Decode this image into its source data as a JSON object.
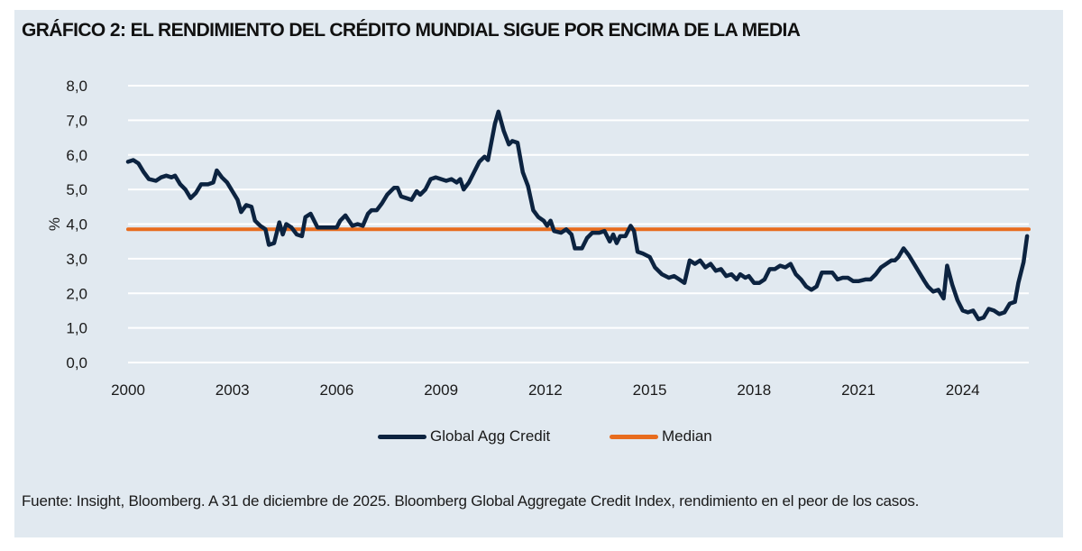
{
  "chart_data": {
    "type": "line",
    "title": "GRÁFICO 2: EL RENDIMIENTO DEL CRÉDITO MUNDIAL SIGUE POR ENCIMA DE LA MEDIA",
    "xlabel": "",
    "ylabel": "%",
    "xlim": [
      2000,
      2025.9
    ],
    "ylim": [
      0,
      8
    ],
    "x_ticks": [
      2000,
      2003,
      2006,
      2009,
      2012,
      2015,
      2018,
      2021,
      2024
    ],
    "x_tick_labels": [
      "2000",
      "2003",
      "2006",
      "2009",
      "2012",
      "2015",
      "2018",
      "2021",
      "2024"
    ],
    "y_ticks": [
      0,
      1,
      2,
      3,
      4,
      5,
      6,
      7,
      8
    ],
    "y_tick_labels": [
      "0,0",
      "1,0",
      "2,0",
      "3,0",
      "4,0",
      "5,0",
      "6,0",
      "7,0",
      "8,0"
    ],
    "grid": true,
    "legend_position": "bottom-center",
    "series": [
      {
        "name": "Global Agg Credit",
        "color": "#0c2340",
        "points": [
          [
            2000.0,
            5.8
          ],
          [
            2000.15,
            5.85
          ],
          [
            2000.3,
            5.75
          ],
          [
            2000.45,
            5.5
          ],
          [
            2000.6,
            5.3
          ],
          [
            2000.8,
            5.25
          ],
          [
            2000.95,
            5.35
          ],
          [
            2001.1,
            5.4
          ],
          [
            2001.25,
            5.35
          ],
          [
            2001.35,
            5.4
          ],
          [
            2001.5,
            5.15
          ],
          [
            2001.65,
            5.0
          ],
          [
            2001.8,
            4.75
          ],
          [
            2001.95,
            4.9
          ],
          [
            2002.1,
            5.15
          ],
          [
            2002.3,
            5.15
          ],
          [
            2002.45,
            5.2
          ],
          [
            2002.55,
            5.55
          ],
          [
            2002.7,
            5.35
          ],
          [
            2002.85,
            5.2
          ],
          [
            2003.0,
            4.95
          ],
          [
            2003.15,
            4.7
          ],
          [
            2003.25,
            4.35
          ],
          [
            2003.4,
            4.55
          ],
          [
            2003.55,
            4.5
          ],
          [
            2003.65,
            4.1
          ],
          [
            2003.8,
            3.95
          ],
          [
            2003.95,
            3.85
          ],
          [
            2004.05,
            3.4
          ],
          [
            2004.2,
            3.45
          ],
          [
            2004.35,
            4.05
          ],
          [
            2004.45,
            3.7
          ],
          [
            2004.55,
            4.0
          ],
          [
            2004.7,
            3.9
          ],
          [
            2004.85,
            3.7
          ],
          [
            2005.0,
            3.65
          ],
          [
            2005.1,
            4.2
          ],
          [
            2005.25,
            4.3
          ],
          [
            2005.45,
            3.9
          ],
          [
            2005.6,
            3.9
          ],
          [
            2005.8,
            3.9
          ],
          [
            2006.0,
            3.9
          ],
          [
            2006.1,
            4.1
          ],
          [
            2006.25,
            4.25
          ],
          [
            2006.45,
            3.95
          ],
          [
            2006.6,
            4.0
          ],
          [
            2006.75,
            3.95
          ],
          [
            2006.9,
            4.3
          ],
          [
            2007.0,
            4.4
          ],
          [
            2007.15,
            4.4
          ],
          [
            2007.3,
            4.6
          ],
          [
            2007.45,
            4.85
          ],
          [
            2007.65,
            5.05
          ],
          [
            2007.75,
            5.05
          ],
          [
            2007.85,
            4.8
          ],
          [
            2008.0,
            4.75
          ],
          [
            2008.15,
            4.7
          ],
          [
            2008.3,
            4.95
          ],
          [
            2008.4,
            4.85
          ],
          [
            2008.55,
            5.0
          ],
          [
            2008.7,
            5.3
          ],
          [
            2008.85,
            5.35
          ],
          [
            2009.0,
            5.3
          ],
          [
            2009.15,
            5.25
          ],
          [
            2009.3,
            5.3
          ],
          [
            2009.45,
            5.2
          ],
          [
            2009.55,
            5.3
          ],
          [
            2009.65,
            5.0
          ],
          [
            2009.8,
            5.2
          ],
          [
            2009.95,
            5.5
          ],
          [
            2010.1,
            5.8
          ],
          [
            2010.25,
            5.95
          ],
          [
            2010.35,
            5.85
          ],
          [
            2010.55,
            6.9
          ],
          [
            2010.65,
            7.25
          ],
          [
            2010.8,
            6.7
          ],
          [
            2010.95,
            6.3
          ],
          [
            2011.05,
            6.4
          ],
          [
            2011.2,
            6.35
          ],
          [
            2011.35,
            5.5
          ],
          [
            2011.5,
            5.1
          ],
          [
            2011.65,
            4.4
          ],
          [
            2011.8,
            4.2
          ],
          [
            2011.95,
            4.1
          ],
          [
            2012.05,
            3.95
          ],
          [
            2012.15,
            4.1
          ],
          [
            2012.25,
            3.8
          ],
          [
            2012.45,
            3.75
          ],
          [
            2012.6,
            3.85
          ],
          [
            2012.75,
            3.7
          ],
          [
            2012.85,
            3.3
          ],
          [
            2013.05,
            3.3
          ],
          [
            2013.2,
            3.6
          ],
          [
            2013.35,
            3.75
          ],
          [
            2013.55,
            3.75
          ],
          [
            2013.7,
            3.8
          ],
          [
            2013.85,
            3.5
          ],
          [
            2013.95,
            3.7
          ],
          [
            2014.05,
            3.45
          ],
          [
            2014.15,
            3.65
          ],
          [
            2014.3,
            3.65
          ],
          [
            2014.45,
            3.95
          ],
          [
            2014.55,
            3.8
          ],
          [
            2014.65,
            3.2
          ],
          [
            2014.8,
            3.15
          ],
          [
            2015.0,
            3.05
          ],
          [
            2015.15,
            2.75
          ],
          [
            2015.35,
            2.55
          ],
          [
            2015.55,
            2.45
          ],
          [
            2015.7,
            2.5
          ],
          [
            2015.85,
            2.4
          ],
          [
            2016.0,
            2.3
          ],
          [
            2016.15,
            2.95
          ],
          [
            2016.3,
            2.85
          ],
          [
            2016.45,
            2.95
          ],
          [
            2016.6,
            2.75
          ],
          [
            2016.75,
            2.85
          ],
          [
            2016.9,
            2.65
          ],
          [
            2017.05,
            2.7
          ],
          [
            2017.2,
            2.5
          ],
          [
            2017.35,
            2.55
          ],
          [
            2017.5,
            2.4
          ],
          [
            2017.6,
            2.55
          ],
          [
            2017.75,
            2.45
          ],
          [
            2017.85,
            2.5
          ],
          [
            2018.0,
            2.3
          ],
          [
            2018.15,
            2.3
          ],
          [
            2018.3,
            2.4
          ],
          [
            2018.45,
            2.7
          ],
          [
            2018.6,
            2.7
          ],
          [
            2018.75,
            2.8
          ],
          [
            2018.9,
            2.75
          ],
          [
            2019.05,
            2.85
          ],
          [
            2019.2,
            2.55
          ],
          [
            2019.35,
            2.4
          ],
          [
            2019.5,
            2.2
          ],
          [
            2019.65,
            2.1
          ],
          [
            2019.8,
            2.2
          ],
          [
            2019.95,
            2.6
          ],
          [
            2020.1,
            2.6
          ],
          [
            2020.25,
            2.6
          ],
          [
            2020.4,
            2.4
          ],
          [
            2020.55,
            2.45
          ],
          [
            2020.7,
            2.45
          ],
          [
            2020.85,
            2.35
          ],
          [
            2021.0,
            2.35
          ],
          [
            2021.2,
            2.4
          ],
          [
            2021.35,
            2.4
          ],
          [
            2021.5,
            2.55
          ],
          [
            2021.65,
            2.75
          ],
          [
            2021.8,
            2.85
          ],
          [
            2021.95,
            2.95
          ],
          [
            2022.05,
            2.95
          ],
          [
            2022.15,
            3.05
          ],
          [
            2022.3,
            3.3
          ],
          [
            2022.45,
            3.1
          ],
          [
            2022.6,
            2.85
          ],
          [
            2022.75,
            2.6
          ],
          [
            2022.9,
            2.35
          ],
          [
            2023.0,
            2.2
          ],
          [
            2023.15,
            2.05
          ],
          [
            2023.3,
            2.1
          ],
          [
            2023.45,
            1.85
          ],
          [
            2023.55,
            2.8
          ],
          [
            2023.7,
            2.25
          ],
          [
            2023.85,
            1.8
          ],
          [
            2024.0,
            1.5
          ],
          [
            2024.15,
            1.45
          ],
          [
            2024.3,
            1.5
          ],
          [
            2024.45,
            1.25
          ],
          [
            2024.6,
            1.3
          ],
          [
            2024.75,
            1.55
          ],
          [
            2024.9,
            1.5
          ],
          [
            2025.05,
            1.4
          ],
          [
            2025.2,
            1.45
          ],
          [
            2025.35,
            1.7
          ],
          [
            2025.5,
            1.75
          ],
          [
            2025.6,
            2.3
          ],
          [
            2025.75,
            2.9
          ],
          [
            2025.85,
            3.65
          ]
        ]
      },
      {
        "name": "Median",
        "color": "#e86c1e",
        "points": [
          [
            2000.0,
            3.85
          ],
          [
            2025.9,
            3.85
          ]
        ]
      }
    ]
  },
  "source_note": "Fuente: Insight, Bloomberg. A 31 de diciembre de 2025. Bloomberg Global Aggregate Credit Index, rendimiento en el peor de los casos."
}
